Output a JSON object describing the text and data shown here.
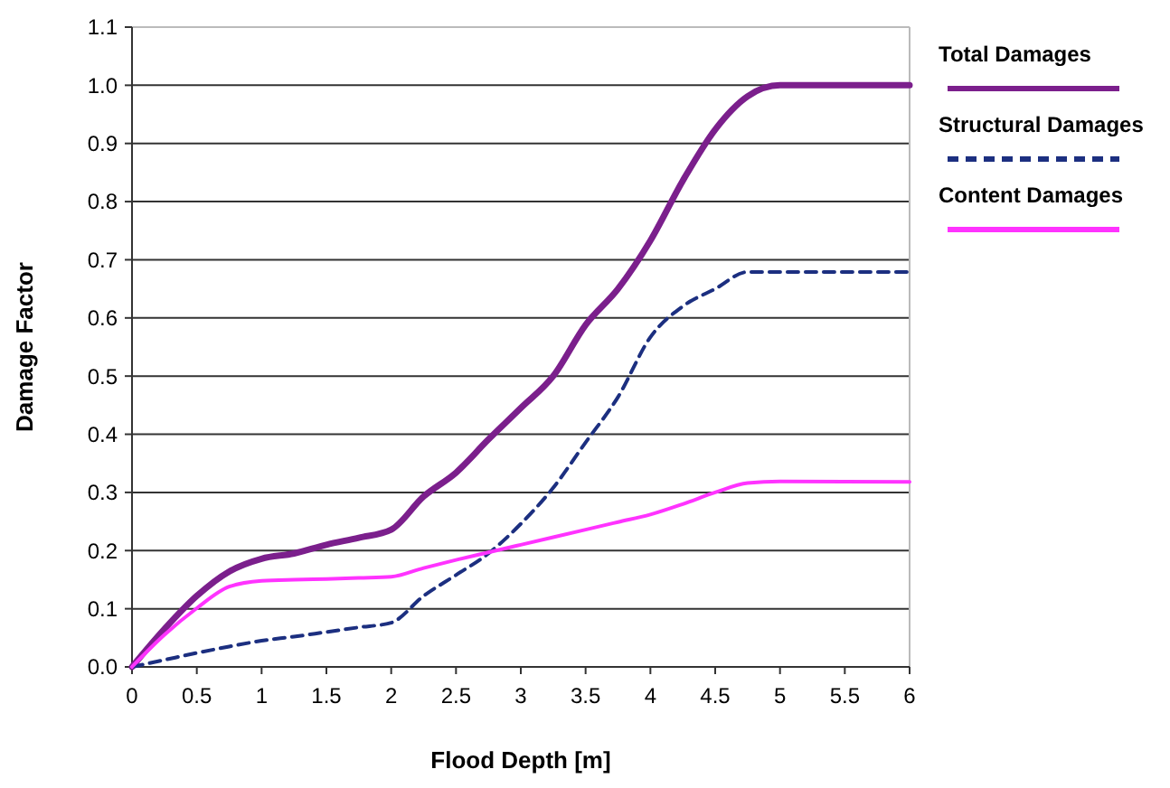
{
  "chart_data": {
    "type": "line",
    "xlabel": "Flood Depth [m]",
    "ylabel": "Damage Factor",
    "x": [
      0,
      0.25,
      0.5,
      0.75,
      1,
      1.25,
      1.5,
      1.75,
      2,
      2.25,
      2.5,
      2.75,
      3,
      3.25,
      3.5,
      3.75,
      4,
      4.25,
      4.5,
      4.75,
      5,
      6
    ],
    "series": [
      {
        "name": "Total Damages",
        "color": "#7b1f8c",
        "line_style": "solid",
        "values": [
          0,
          0.065,
          0.122,
          0.164,
          0.186,
          0.195,
          0.21,
          0.222,
          0.236,
          0.293,
          0.334,
          0.391,
          0.445,
          0.5,
          0.588,
          0.65,
          0.733,
          0.836,
          0.924,
          0.981,
          1,
          1
        ]
      },
      {
        "name": "Structural Damages",
        "color": "#1c2f80",
        "line_style": "dashed",
        "values": [
          0,
          0.012,
          0.024,
          0.035,
          0.045,
          0.052,
          0.06,
          0.068,
          0.076,
          0.122,
          0.158,
          0.195,
          0.246,
          0.308,
          0.386,
          0.464,
          0.567,
          0.62,
          0.65,
          0.679,
          0.679,
          0.679
        ]
      },
      {
        "name": "Content Damages",
        "color": "#ff33ff",
        "line_style": "solid",
        "values": [
          0,
          0.055,
          0.101,
          0.138,
          0.148,
          0.15,
          0.151,
          0.153,
          0.155,
          0.17,
          0.184,
          0.197,
          0.21,
          0.223,
          0.236,
          0.249,
          0.262,
          0.28,
          0.3,
          0.316,
          0.319,
          0.318
        ]
      }
    ],
    "xlim": [
      0,
      6
    ],
    "xticks": [
      0,
      {
        "value": 0.5,
        "label": "0.5"
      },
      1,
      {
        "value": 1.5,
        "label": "1.5"
      },
      2,
      {
        "value": 2.5,
        "label": "2.5"
      },
      3,
      {
        "value": 3.5,
        "label": "3.5"
      },
      4,
      {
        "value": 4.5,
        "label": "4.5"
      },
      5,
      {
        "value": 5.5,
        "label": "5.5"
      },
      6
    ],
    "ylim": [
      0,
      1.1
    ],
    "yticks": [
      {
        "value": 0,
        "label": "0.0"
      },
      {
        "value": 0.1,
        "label": "0.1"
      },
      {
        "value": 0.2,
        "label": "0.2"
      },
      {
        "value": 0.3,
        "label": "0.3"
      },
      {
        "value": 0.4,
        "label": "0.4"
      },
      {
        "value": 0.5,
        "label": "0.5"
      },
      {
        "value": 0.6,
        "label": "0.6"
      },
      {
        "value": 0.7,
        "label": "0.7"
      },
      {
        "value": 0.8,
        "label": "0.8"
      },
      {
        "value": 0.9,
        "label": "0.9"
      },
      {
        "value": 1,
        "label": "1.0"
      },
      {
        "value": 1.1,
        "label": "1.1"
      }
    ],
    "grid": "y",
    "legend": "right",
    "marker": "none"
  }
}
